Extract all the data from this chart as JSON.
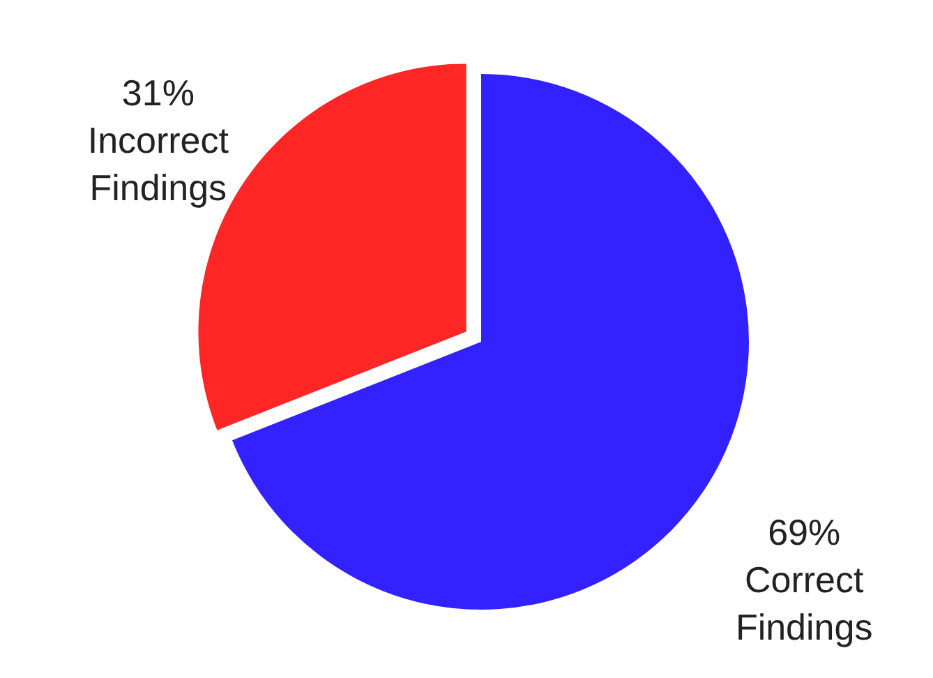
{
  "chart_data": {
    "type": "pie",
    "categories": [
      "Correct Findings",
      "Incorrect Findings"
    ],
    "values": [
      69,
      31
    ],
    "colors": [
      "#3322ff",
      "#ff2626"
    ],
    "value_labels": [
      "69%",
      "31%"
    ]
  }
}
